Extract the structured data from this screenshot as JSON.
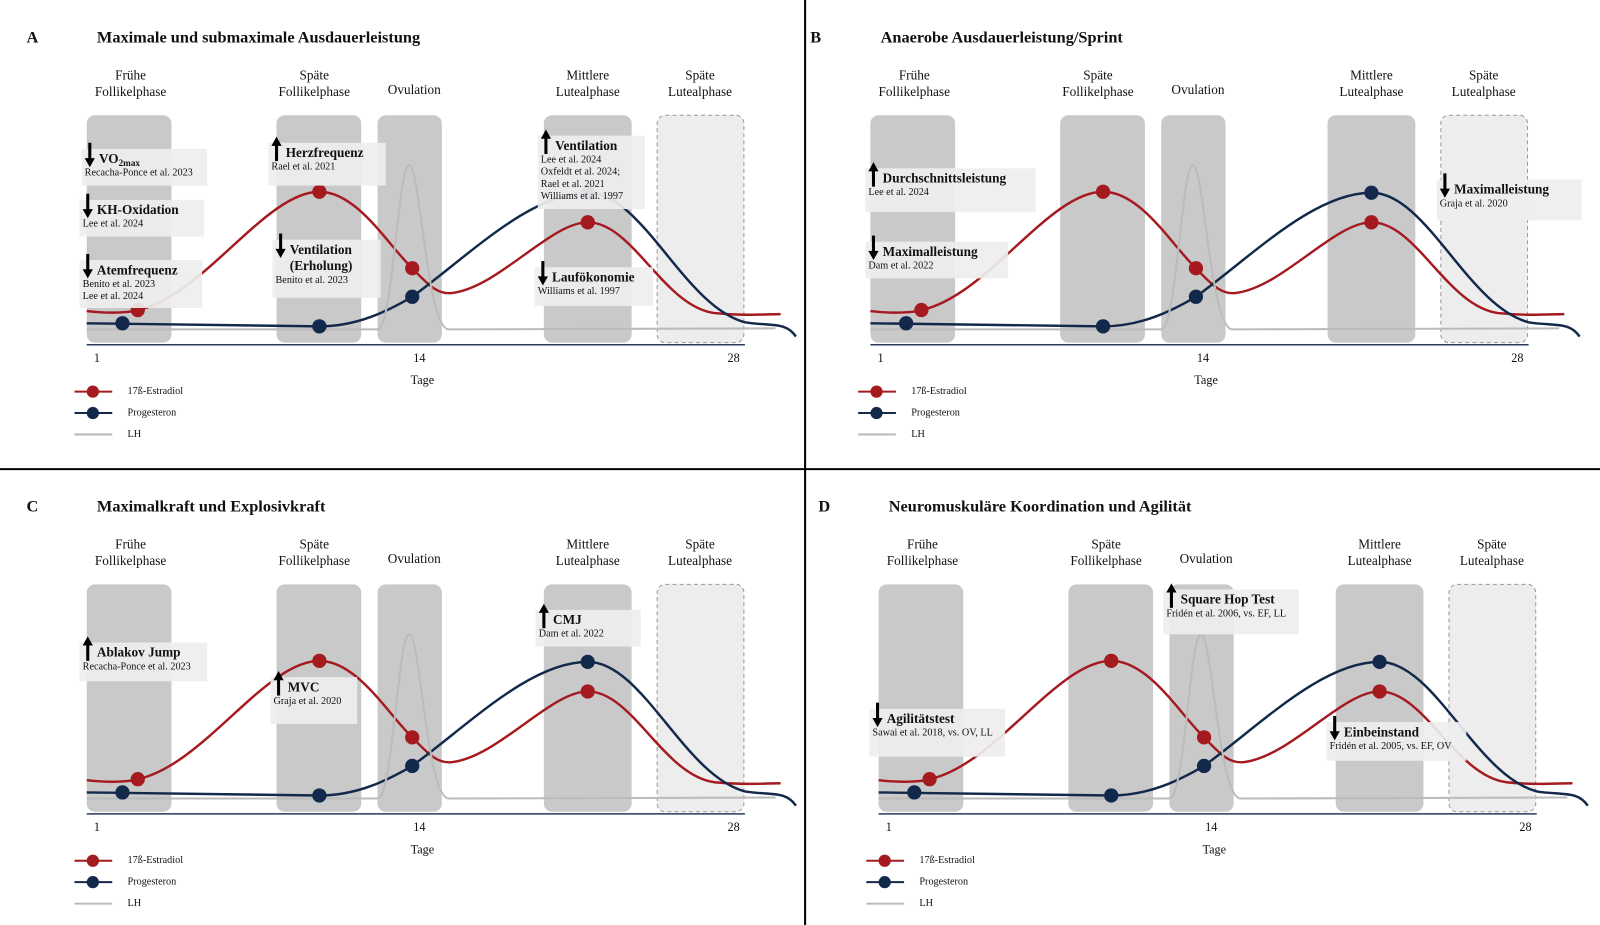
{
  "panels": [
    {
      "letter": "A",
      "title": "Maximale und submaximale Ausdauerleistung",
      "phases": [
        [
          "Frühe",
          "Follikelphase"
        ],
        [
          "Späte",
          "Follikelphase"
        ],
        [
          "Ovulation"
        ],
        [
          "Mittlere",
          "Lutealphase"
        ],
        [
          "Späte",
          "Lutealphase"
        ]
      ],
      "x_ticks": [
        1,
        14,
        28
      ],
      "x_label": "Tage",
      "legend": [
        "17ß-Estradiol",
        "Progesteron",
        "LH"
      ],
      "annotations": [
        {
          "direction": "down",
          "label": [
            "VO"
          ],
          "sub": "2max",
          "refs": [
            "Recacha-Ponce et al. 2023"
          ]
        },
        {
          "direction": "down",
          "label": [
            "KH-Oxidation"
          ],
          "refs": [
            "Lee et al. 2024"
          ]
        },
        {
          "direction": "down",
          "label": [
            "Atemfrequenz"
          ],
          "refs": [
            "Benito et al. 2023",
            "Lee et al. 2024"
          ]
        },
        {
          "direction": "up",
          "label": [
            "Herzfrequenz"
          ],
          "refs": [
            "Rael et al. 2021"
          ]
        },
        {
          "direction": "down",
          "label": [
            "Ventilation",
            "(Erholung)"
          ],
          "refs": [
            "Benito et al. 2023"
          ]
        },
        {
          "direction": "up",
          "label": [
            "Ventilation"
          ],
          "refs": [
            "Lee et al. 2024",
            "Oxfeldt et al. 2024;",
            "Rael et al. 2021",
            "Williams et al. 1997"
          ]
        },
        {
          "direction": "down",
          "label": [
            "Laufökonomie"
          ],
          "refs": [
            "Williams et al. 1997"
          ]
        }
      ]
    },
    {
      "letter": "B",
      "title": "Anaerobe Ausdauerleistung/Sprint",
      "phases": [
        [
          "Frühe",
          "Follikelphase"
        ],
        [
          "Späte",
          "Follikelphase"
        ],
        [
          "Ovulation"
        ],
        [
          "Mittlere",
          "Lutealphase"
        ],
        [
          "Späte",
          "Lutealphase"
        ]
      ],
      "x_ticks": [
        1,
        14,
        28
      ],
      "x_label": "Tage",
      "legend": [
        "17ß-Estradiol",
        "Progesteron",
        "LH"
      ],
      "annotations": [
        {
          "direction": "up",
          "label": [
            "Durchschnittsleistung"
          ],
          "refs": [
            "Lee et al. 2024"
          ]
        },
        {
          "direction": "down",
          "label": [
            "Maximalleistung"
          ],
          "refs": [
            "Dam et al. 2022"
          ]
        },
        {
          "direction": "down",
          "label": [
            "Maximalleistung"
          ],
          "refs": [
            "Graja et al. 2020"
          ]
        }
      ]
    },
    {
      "letter": "C",
      "title": "Maximalkraft und Explosivkraft",
      "phases": [
        [
          "Frühe",
          "Follikelphase"
        ],
        [
          "Späte",
          "Follikelphase"
        ],
        [
          "Ovulation"
        ],
        [
          "Mittlere",
          "Lutealphase"
        ],
        [
          "Späte",
          "Lutealphase"
        ]
      ],
      "x_ticks": [
        1,
        14,
        28
      ],
      "x_label": "Tage",
      "legend": [
        "17ß-Estradiol",
        "Progesteron",
        "LH"
      ],
      "annotations": [
        {
          "direction": "up",
          "label": [
            "Ablakov Jump"
          ],
          "refs": [
            "Recacha-Ponce et al. 2023"
          ]
        },
        {
          "direction": "up",
          "label": [
            "MVC"
          ],
          "refs": [
            "Graja et al. 2020"
          ]
        },
        {
          "direction": "up",
          "label": [
            "CMJ"
          ],
          "refs": [
            "Dam et al. 2022"
          ]
        }
      ]
    },
    {
      "letter": "D",
      "title": "Neuromuskuläre Koordination und Agilität",
      "phases": [
        [
          "Frühe",
          "Follikelphase"
        ],
        [
          "Späte",
          "Follikelphase"
        ],
        [
          "Ovulation"
        ],
        [
          "Mittlere",
          "Lutealphase"
        ],
        [
          "Späte",
          "Lutealphase"
        ]
      ],
      "x_ticks": [
        1,
        14,
        28
      ],
      "x_label": "Tage",
      "legend": [
        "17ß-Estradiol",
        "Progesteron",
        "LH"
      ],
      "annotations": [
        {
          "direction": "down",
          "label": [
            "Agilitätstest"
          ],
          "refs": [
            "Sawai et al. 2018, vs. OV, LL"
          ]
        },
        {
          "direction": "up",
          "label": [
            "Square Hop Test"
          ],
          "refs": [
            "Fridén et al. 2006, vs. EF, LL"
          ]
        },
        {
          "direction": "down",
          "label": [
            "Einbeinstand"
          ],
          "refs": [
            "Fridén et al. 2005, vs. EF, OV"
          ]
        }
      ]
    }
  ]
}
